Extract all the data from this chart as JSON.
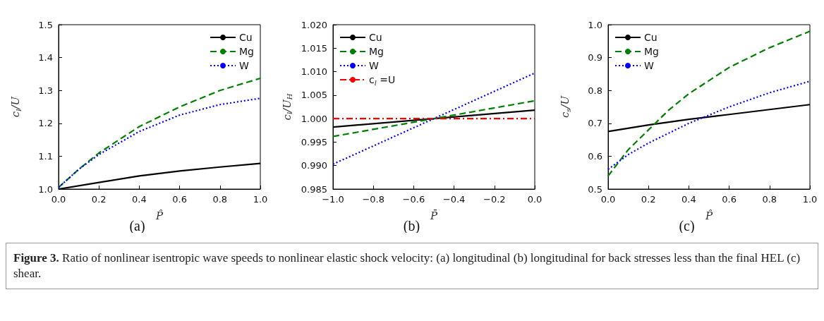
{
  "chart_data": [
    {
      "type": "line",
      "xlabel": "P̂",
      "ylabel": "c$_{l}$/U",
      "xlim": [
        0,
        1
      ],
      "ylim": [
        1,
        1.5
      ],
      "legend": "top right",
      "marker": "none",
      "grid": false,
      "xticks": [
        {
          "value": 0,
          "label": "0.0"
        },
        {
          "value": 0.2,
          "label": "0.2"
        },
        {
          "value": 0.4,
          "label": "0.4"
        },
        {
          "value": 0.6,
          "label": "0.6"
        },
        {
          "value": 0.8,
          "label": "0.8"
        },
        {
          "value": 1,
          "label": "1.0"
        }
      ],
      "yticks": [
        {
          "value": 1,
          "label": "1.0"
        },
        1.1,
        1.2,
        1.3,
        1.4,
        1.5
      ],
      "annotations": [
        "(a)",
        "Figure 3.",
        "Ratio of nonlinear isentropic wave speeds to nonlinear elastic shock velocity: (a) longitudinal (b) longitudinal for back stresses less than the final HEL (c) shear."
      ],
      "series": [
        {
          "name": "Cu",
          "color": "#000000",
          "line_style": "solid",
          "x": [
            0,
            0.2,
            0.4,
            0.6,
            0.8,
            1
          ],
          "values": [
            1.0,
            1.02,
            1.04,
            1.055,
            1.067,
            1.078
          ]
        },
        {
          "name": "Mg",
          "color": "#008000",
          "line_style": "dashed",
          "x": [
            0,
            0.1,
            0.2,
            0.4,
            0.6,
            0.8,
            1
          ],
          "values": [
            1.005,
            1.06,
            1.11,
            1.19,
            1.25,
            1.3,
            1.337
          ]
        },
        {
          "name": "W",
          "color": "#0000ff",
          "line_style": "dotted",
          "x": [
            0,
            0.1,
            0.2,
            0.4,
            0.6,
            0.8,
            1
          ],
          "values": [
            1.005,
            1.06,
            1.105,
            1.175,
            1.225,
            1.257,
            1.276
          ]
        }
      ]
    },
    {
      "type": "line",
      "xlabel": "P̄",
      "ylabel": "c$_{l}$/U$_{H}$",
      "xlim": [
        -1,
        0
      ],
      "ylim": [
        0.985,
        1.02
      ],
      "legend": "top left",
      "marker": "none",
      "grid": false,
      "xticks": [
        {
          "value": -1,
          "label": "−1.0"
        },
        {
          "value": -0.8,
          "label": "−0.8"
        },
        {
          "value": -0.6,
          "label": "−0.6"
        },
        {
          "value": -0.4,
          "label": "−0.4"
        },
        {
          "value": -0.2,
          "label": "−0.2"
        },
        {
          "value": 0,
          "label": "0.0"
        }
      ],
      "yticks": [
        {
          "value": 0.985,
          "label": "0.985"
        },
        {
          "value": 0.99,
          "label": "0.990"
        },
        {
          "value": 0.995,
          "label": "0.995"
        },
        {
          "value": 1,
          "label": "1.000"
        },
        {
          "value": 1.005,
          "label": "1.005"
        },
        {
          "value": 1.01,
          "label": "1.010"
        },
        {
          "value": 1.015,
          "label": "1.015"
        },
        {
          "value": 1.02,
          "label": "1.020"
        }
      ],
      "annotations": [
        "(b)"
      ],
      "series": [
        {
          "name": "Cu",
          "color": "#000000",
          "line_style": "solid",
          "x": [
            -1,
            0
          ],
          "values": [
            0.9982,
            1.0018
          ]
        },
        {
          "name": "Mg",
          "color": "#008000",
          "line_style": "dashed",
          "x": [
            -1,
            0
          ],
          "values": [
            0.9962,
            1.0038
          ]
        },
        {
          "name": "W",
          "color": "#0000ff",
          "line_style": "dotted",
          "x": [
            -1,
            0
          ],
          "values": [
            0.9903,
            1.0097
          ]
        },
        {
          "name": "c$_{l}$ =U",
          "color": "#ff0000",
          "line_style": "dashdot",
          "x": [
            -1,
            0
          ],
          "values": [
            1,
            1
          ]
        }
      ]
    },
    {
      "type": "line",
      "xlabel": "P̂",
      "ylabel": "c$_{s}$/U",
      "xlim": [
        0,
        1
      ],
      "ylim": [
        0.5,
        1
      ],
      "legend": "top left",
      "marker": "none",
      "grid": false,
      "xticks": [
        {
          "value": 0,
          "label": "0.0"
        },
        {
          "value": 0.2,
          "label": "0.2"
        },
        {
          "value": 0.4,
          "label": "0.4"
        },
        {
          "value": 0.6,
          "label": "0.6"
        },
        {
          "value": 0.8,
          "label": "0.8"
        },
        {
          "value": 1,
          "label": "1.0"
        }
      ],
      "yticks": [
        0.5,
        0.6,
        0.7,
        0.8,
        0.9,
        {
          "value": 1,
          "label": "1.0"
        }
      ],
      "annotations": [
        "(c)"
      ],
      "series": [
        {
          "name": "Cu",
          "color": "#000000",
          "line_style": "solid",
          "x": [
            0,
            0.2,
            0.4,
            0.6,
            0.8,
            1
          ],
          "values": [
            0.675,
            0.695,
            0.712,
            0.727,
            0.742,
            0.757
          ]
        },
        {
          "name": "Mg",
          "color": "#008000",
          "line_style": "dashed",
          "x": [
            0,
            0.1,
            0.2,
            0.3,
            0.4,
            0.6,
            0.8,
            1
          ],
          "values": [
            0.54,
            0.62,
            0.68,
            0.74,
            0.79,
            0.87,
            0.93,
            0.98
          ]
        },
        {
          "name": "W",
          "color": "#0000ff",
          "line_style": "dotted",
          "x": [
            0,
            0.1,
            0.2,
            0.4,
            0.6,
            0.8,
            1
          ],
          "values": [
            0.56,
            0.605,
            0.64,
            0.7,
            0.75,
            0.793,
            0.828
          ]
        }
      ]
    }
  ]
}
